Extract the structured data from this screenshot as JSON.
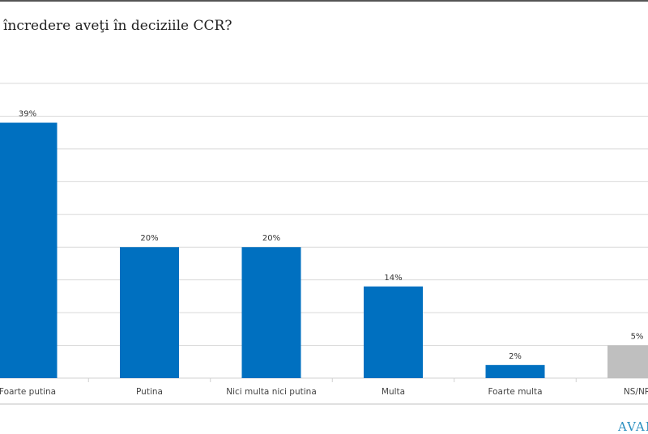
{
  "title": "încredere aveţi în deciziile CCR?",
  "logo_text": "AVAN",
  "chart_data": {
    "type": "bar",
    "title": "încredere aveţi în deciziile CCR?",
    "categories": [
      "Foarte putina",
      "Putina",
      "Nici multa nici putina",
      "Multa",
      "Foarte multa",
      "NS/NR"
    ],
    "values": [
      39,
      20,
      20,
      14,
      2,
      5
    ],
    "data_labels": [
      "39%",
      "20%",
      "20%",
      "14%",
      "2%",
      "5%"
    ],
    "colors": [
      "#0070C0",
      "#0070C0",
      "#0070C0",
      "#0070C0",
      "#0070C0",
      "#BFBFBF"
    ],
    "ylim": [
      0,
      45
    ],
    "grid": true,
    "grid_step": 5,
    "xlabel": "",
    "ylabel": ""
  }
}
